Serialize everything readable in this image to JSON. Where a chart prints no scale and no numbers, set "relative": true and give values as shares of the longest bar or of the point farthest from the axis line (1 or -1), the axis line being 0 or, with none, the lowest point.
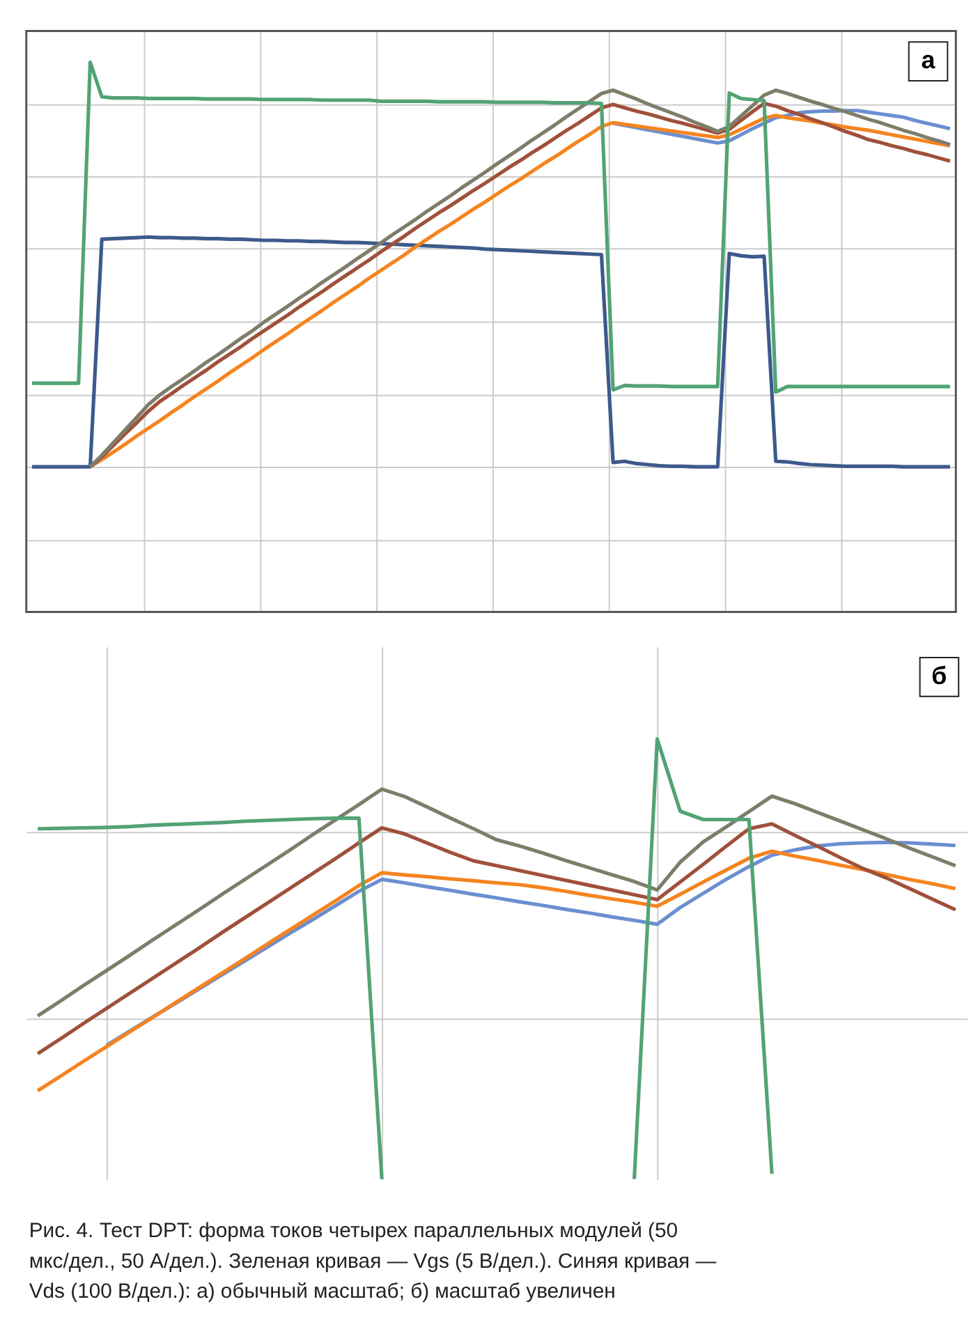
{
  "chart_data": [
    {
      "type": "line",
      "title": "а",
      "relative": true,
      "grid": true,
      "categories": [
        null,
        null,
        null,
        null,
        null,
        null,
        null,
        null,
        null,
        null,
        null,
        null,
        null,
        null,
        null,
        null,
        null,
        null,
        null,
        null,
        null,
        null,
        null,
        null,
        null,
        null,
        null,
        null,
        null,
        null,
        null,
        null,
        null,
        null,
        null,
        null,
        null,
        null,
        null,
        null,
        null,
        null,
        null,
        null,
        null,
        null,
        null,
        null,
        null,
        null,
        null,
        null,
        null,
        null,
        null,
        null,
        null,
        null,
        null,
        null,
        null,
        null,
        null,
        null,
        null,
        null,
        null,
        null,
        null,
        null,
        null,
        null,
        null,
        null,
        null,
        null,
        null,
        null,
        null,
        null
      ],
      "series": [
        {
          "color": "#3d5a8c",
          "values": [
            0.264,
            0.264,
            0.264,
            0.264,
            0.264,
            0.264,
            0.678,
            0.679,
            0.68,
            0.681,
            0.682,
            0.681,
            0.681,
            0.68,
            0.68,
            0.679,
            0.679,
            0.678,
            0.678,
            0.677,
            0.676,
            0.676,
            0.675,
            0.675,
            0.674,
            0.674,
            0.673,
            0.672,
            0.672,
            0.671,
            0.67,
            0.669,
            0.668,
            0.667,
            0.666,
            0.665,
            0.664,
            0.663,
            0.662,
            0.66,
            0.659,
            0.658,
            0.657,
            0.656,
            0.655,
            0.654,
            0.653,
            0.652,
            0.651,
            0.65,
            0.272,
            0.274,
            0.27,
            0.268,
            0.266,
            0.265,
            0.265,
            0.264,
            0.264,
            0.264,
            0.652,
            0.648,
            0.646,
            0.647,
            0.274,
            0.273,
            0.27,
            0.268,
            0.267,
            0.266,
            0.265,
            0.265,
            0.265,
            0.265,
            0.265,
            0.264,
            0.264,
            0.264,
            0.264,
            0.264
          ]
        },
        {
          "color": "#6b8fd0",
          "values": [
            null,
            null,
            null,
            null,
            null,
            null,
            null,
            null,
            null,
            null,
            null,
            null,
            null,
            null,
            null,
            null,
            null,
            null,
            null,
            null,
            null,
            null,
            null,
            null,
            null,
            null,
            null,
            null,
            null,
            null,
            null,
            null,
            null,
            null,
            null,
            null,
            null,
            null,
            null,
            null,
            null,
            null,
            null,
            null,
            null,
            null,
            null,
            null,
            null,
            null,
            0.889,
            0.885,
            0.881,
            0.877,
            0.873,
            0.869,
            0.865,
            0.861,
            0.857,
            0.853,
            0.857,
            0.868,
            0.879,
            0.889,
            0.899,
            0.903,
            0.908,
            0.91,
            0.911,
            0.911,
            0.912,
            0.912,
            0.909,
            0.906,
            0.903,
            0.9,
            0.894,
            0.889,
            0.884,
            0.879
          ]
        },
        {
          "color": "#f5841f",
          "values": [
            null,
            null,
            null,
            null,
            null,
            0.264,
            0.277,
            0.291,
            0.305,
            0.32,
            0.334,
            0.348,
            0.363,
            0.377,
            0.392,
            0.406,
            0.42,
            0.435,
            0.449,
            0.463,
            0.478,
            0.492,
            0.506,
            0.521,
            0.535,
            0.549,
            0.564,
            0.578,
            0.592,
            0.607,
            0.621,
            0.635,
            0.649,
            0.664,
            0.678,
            0.692,
            0.705,
            0.719,
            0.733,
            0.746,
            0.76,
            0.774,
            0.787,
            0.801,
            0.815,
            0.828,
            0.842,
            0.856,
            0.869,
            0.883,
            0.89,
            0.887,
            0.884,
            0.881,
            0.878,
            0.875,
            0.872,
            0.869,
            0.866,
            0.863,
            0.868,
            0.878,
            0.888,
            0.898,
            0.903,
            0.899,
            0.896,
            0.893,
            0.889,
            0.886,
            0.882,
            0.879,
            0.876,
            0.872,
            0.868,
            0.864,
            0.86,
            0.856,
            0.852,
            0.848
          ]
        },
        {
          "color": "#a0503a",
          "values": [
            null,
            null,
            null,
            null,
            null,
            0.264,
            0.282,
            0.303,
            0.324,
            0.344,
            0.365,
            0.383,
            0.397,
            0.412,
            0.426,
            0.44,
            0.455,
            0.469,
            0.483,
            0.498,
            0.512,
            0.526,
            0.54,
            0.555,
            0.569,
            0.583,
            0.598,
            0.612,
            0.626,
            0.64,
            0.655,
            0.669,
            0.683,
            0.698,
            0.712,
            0.726,
            0.739,
            0.753,
            0.767,
            0.78,
            0.794,
            0.808,
            0.821,
            0.835,
            0.848,
            0.862,
            0.876,
            0.889,
            0.903,
            0.917,
            0.923,
            0.917,
            0.911,
            0.906,
            0.9,
            0.894,
            0.889,
            0.883,
            0.877,
            0.871,
            0.878,
            0.894,
            0.91,
            0.925,
            0.92,
            0.912,
            0.905,
            0.897,
            0.89,
            0.882,
            0.874,
            0.867,
            0.859,
            0.854,
            0.848,
            0.843,
            0.837,
            0.832,
            0.826,
            0.82
          ]
        },
        {
          "color": "#7e7d6a",
          "values": [
            null,
            null,
            null,
            null,
            null,
            0.264,
            0.285,
            0.308,
            0.331,
            0.354,
            0.377,
            0.395,
            0.41,
            0.424,
            0.439,
            0.454,
            0.468,
            0.483,
            0.498,
            0.512,
            0.528,
            0.542,
            0.556,
            0.571,
            0.585,
            0.6,
            0.614,
            0.628,
            0.643,
            0.657,
            0.671,
            0.686,
            0.7,
            0.714,
            0.729,
            0.743,
            0.757,
            0.772,
            0.786,
            0.8,
            0.815,
            0.829,
            0.843,
            0.858,
            0.872,
            0.886,
            0.901,
            0.915,
            0.929,
            0.943,
            0.949,
            0.941,
            0.933,
            0.924,
            0.916,
            0.908,
            0.9,
            0.891,
            0.883,
            0.874,
            0.883,
            0.902,
            0.921,
            0.94,
            0.949,
            0.943,
            0.936,
            0.929,
            0.923,
            0.916,
            0.91,
            0.903,
            0.896,
            0.89,
            0.883,
            0.876,
            0.87,
            0.863,
            0.857,
            0.85
          ]
        },
        {
          "color": "#52a374",
          "values": [
            0.416,
            0.416,
            0.416,
            0.416,
            0.416,
            1.0,
            0.937,
            0.935,
            0.935,
            0.935,
            0.934,
            0.934,
            0.934,
            0.934,
            0.934,
            0.933,
            0.933,
            0.933,
            0.933,
            0.933,
            0.932,
            0.932,
            0.932,
            0.932,
            0.932,
            0.931,
            0.931,
            0.931,
            0.931,
            0.931,
            0.929,
            0.929,
            0.929,
            0.929,
            0.929,
            0.928,
            0.928,
            0.928,
            0.928,
            0.928,
            0.927,
            0.927,
            0.927,
            0.927,
            0.927,
            0.926,
            0.926,
            0.926,
            0.926,
            0.925,
            0.404,
            0.412,
            0.411,
            0.411,
            0.411,
            0.41,
            0.41,
            0.41,
            0.41,
            0.41,
            0.944,
            0.934,
            0.932,
            0.93,
            0.4,
            0.41,
            0.41,
            0.41,
            0.41,
            0.41,
            0.41,
            0.41,
            0.41,
            0.41,
            0.41,
            0.41,
            0.41,
            0.41,
            0.41,
            0.41
          ]
        }
      ]
    },
    {
      "type": "line",
      "title": "б",
      "relative": true,
      "grid": true,
      "categories": [
        null,
        null,
        null,
        null,
        null,
        null,
        null,
        null,
        null,
        null,
        null,
        null,
        null,
        null,
        null,
        null,
        null,
        null,
        null,
        null,
        null,
        null,
        null,
        null,
        null,
        null,
        null,
        null,
        null,
        null,
        null,
        null,
        null,
        null,
        null,
        null,
        null,
        null,
        null,
        null,
        null
      ],
      "series": [
        {
          "color": "#6b8fd0",
          "values": [
            null,
            null,
            null,
            0.304,
            0.336,
            0.368,
            0.399,
            0.431,
            0.463,
            0.495,
            0.527,
            0.559,
            0.59,
            0.622,
            0.654,
            0.681,
            0.673,
            0.664,
            0.656,
            0.647,
            0.639,
            0.63,
            0.622,
            0.613,
            0.605,
            0.596,
            0.588,
            0.579,
            0.617,
            0.649,
            0.681,
            0.71,
            0.736,
            0.748,
            0.757,
            0.762,
            0.764,
            0.765,
            0.764,
            0.761,
            0.758
          ]
        },
        {
          "color": "#f5841f",
          "values": [
            0.201,
            0.234,
            0.268,
            0.301,
            0.334,
            0.367,
            0.401,
            0.434,
            0.467,
            0.5,
            0.534,
            0.567,
            0.6,
            0.633,
            0.667,
            0.696,
            0.691,
            0.687,
            0.682,
            0.678,
            0.673,
            0.669,
            0.662,
            0.654,
            0.645,
            0.637,
            0.629,
            0.62,
            0.647,
            0.675,
            0.702,
            0.729,
            0.745,
            0.734,
            0.724,
            0.713,
            0.703,
            0.692,
            0.681,
            0.671,
            0.66
          ]
        },
        {
          "color": "#a0503a",
          "values": [
            0.285,
            0.319,
            0.354,
            0.388,
            0.422,
            0.456,
            0.49,
            0.524,
            0.559,
            0.593,
            0.627,
            0.661,
            0.695,
            0.729,
            0.764,
            0.798,
            0.784,
            0.763,
            0.742,
            0.723,
            0.712,
            0.701,
            0.69,
            0.679,
            0.668,
            0.657,
            0.646,
            0.635,
            0.675,
            0.715,
            0.756,
            0.796,
            0.807,
            0.781,
            0.756,
            0.73,
            0.705,
            0.684,
            0.66,
            0.636,
            0.612
          ]
        },
        {
          "color": "#7e7d6a",
          "values": [
            0.371,
            0.405,
            0.44,
            0.474,
            0.508,
            0.543,
            0.577,
            0.611,
            0.646,
            0.68,
            0.714,
            0.748,
            0.783,
            0.817,
            0.851,
            0.886,
            0.869,
            0.845,
            0.82,
            0.796,
            0.771,
            0.757,
            0.741,
            0.724,
            0.708,
            0.692,
            0.676,
            0.657,
            0.72,
            0.766,
            0.8,
            0.835,
            0.87,
            0.853,
            0.833,
            0.813,
            0.793,
            0.773,
            0.752,
            0.732,
            0.712
          ]
        },
        {
          "color": "#52a374",
          "values": [
            0.796,
            0.797,
            0.798,
            0.799,
            0.801,
            0.804,
            0.806,
            0.808,
            0.81,
            0.813,
            0.815,
            0.817,
            0.819,
            0.82,
            0.82,
            0,
            null,
            null,
            null,
            null,
            null,
            null,
            null,
            null,
            null,
            null,
            0,
            1.0,
            0.836,
            0.817,
            0.817,
            0.817,
            0.012,
            null,
            null,
            null,
            null,
            null,
            null,
            null,
            null
          ]
        }
      ],
      "annotations": [
        "Рис. 4. Тест DPT: форма токов четырех параллельных модулей (50 мкс/дел., 50 А/дел.). Зеленая кривая — Vgs (5 В/дел.). Синяя кривая — Vds (100 В/дел.): а) обычный масштаб; б) масштаб увеличен"
      ]
    }
  ]
}
